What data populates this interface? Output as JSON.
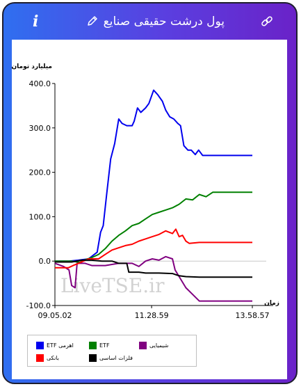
{
  "header": {
    "title": "پول درشت حقیقی صنایع",
    "info_label": "i",
    "info_icon": "info-icon",
    "edit_icon": "pencil-icon",
    "link_icon": "link-icon"
  },
  "colors": {
    "frame_start": "#2f6ff0",
    "frame_end": "#6a22c8",
    "etf_leveraged": "#0000ee",
    "etf": "#008000",
    "chemical": "#800080",
    "bank": "#ff0000",
    "basic_metals": "#000000"
  },
  "watermark": "LiveTSE.ir",
  "chart_data": {
    "type": "line",
    "ylabel": "میلیارد تومان",
    "xlabel": "زمان",
    "ylim": [
      -100,
      400
    ],
    "yticks": [
      "400.0",
      "300.0",
      "200.0",
      "100.0",
      "0.0",
      "-100.0"
    ],
    "ytick_values": [
      400,
      300,
      200,
      100,
      0,
      -100
    ],
    "x_time_range": [
      "09:05:02",
      "13:58:57"
    ],
    "xticks": [
      "09.05.02",
      "11.28.59",
      "13.58.57"
    ],
    "grid": "zero-line-only",
    "legend_placement": "bottom-left",
    "series": [
      {
        "name": "ETF اهرمی",
        "color": "#0000ee",
        "points": [
          [
            "09:05:02",
            0
          ],
          [
            "09:26:00",
            0
          ],
          [
            "09:40:00",
            2
          ],
          [
            "09:55:00",
            5
          ],
          [
            "10:08:00",
            20
          ],
          [
            "10:13:00",
            65
          ],
          [
            "10:17:00",
            80
          ],
          [
            "10:22:00",
            150
          ],
          [
            "10:28:00",
            230
          ],
          [
            "10:34:00",
            265
          ],
          [
            "10:40:00",
            320
          ],
          [
            "10:45:00",
            310
          ],
          [
            "10:52:00",
            305
          ],
          [
            "11:00:00",
            305
          ],
          [
            "11:03:00",
            315
          ],
          [
            "11:08:00",
            345
          ],
          [
            "11:13:00",
            335
          ],
          [
            "11:20:00",
            345
          ],
          [
            "11:25:00",
            355
          ],
          [
            "11:32:00",
            385
          ],
          [
            "11:38:00",
            375
          ],
          [
            "11:45:00",
            360
          ],
          [
            "11:50:00",
            340
          ],
          [
            "11:56:00",
            325
          ],
          [
            "12:02:00",
            320
          ],
          [
            "12:08:00",
            310
          ],
          [
            "12:12:00",
            305
          ],
          [
            "12:17:00",
            260
          ],
          [
            "12:23:00",
            250
          ],
          [
            "12:28:00",
            250
          ],
          [
            "12:34:00",
            240
          ],
          [
            "12:39:00",
            250
          ],
          [
            "12:45:00",
            238
          ],
          [
            "13:00:00",
            238
          ],
          [
            "13:58:57",
            238
          ]
        ]
      },
      {
        "name": "ETF",
        "color": "#008000",
        "points": [
          [
            "09:05:02",
            0
          ],
          [
            "09:30:00",
            0
          ],
          [
            "09:42:00",
            -3
          ],
          [
            "09:50:00",
            3
          ],
          [
            "10:00:00",
            8
          ],
          [
            "10:10:00",
            15
          ],
          [
            "10:20:00",
            28
          ],
          [
            "10:30:00",
            45
          ],
          [
            "10:40:00",
            58
          ],
          [
            "10:50:00",
            68
          ],
          [
            "11:00:00",
            80
          ],
          [
            "11:10:00",
            85
          ],
          [
            "11:20:00",
            95
          ],
          [
            "11:30:00",
            105
          ],
          [
            "11:40:00",
            110
          ],
          [
            "11:50:00",
            115
          ],
          [
            "12:00:00",
            120
          ],
          [
            "12:10:00",
            128
          ],
          [
            "12:20:00",
            140
          ],
          [
            "12:30:00",
            138
          ],
          [
            "12:40:00",
            150
          ],
          [
            "12:50:00",
            145
          ],
          [
            "13:00:00",
            155
          ],
          [
            "13:10:00",
            155
          ],
          [
            "13:58:57",
            155
          ]
        ]
      },
      {
        "name": "شیمیایی",
        "color": "#800080",
        "points": [
          [
            "09:05:02",
            -5
          ],
          [
            "09:18:00",
            -12
          ],
          [
            "09:26:00",
            -20
          ],
          [
            "09:30:00",
            -55
          ],
          [
            "09:35:00",
            -60
          ],
          [
            "09:38:00",
            -5
          ],
          [
            "09:50:00",
            -5
          ],
          [
            "10:00:00",
            -10
          ],
          [
            "10:20:00",
            -10
          ],
          [
            "10:40:00",
            -5
          ],
          [
            "11:00:00",
            -5
          ],
          [
            "11:10:00",
            -12
          ],
          [
            "11:20:00",
            0
          ],
          [
            "11:30:00",
            5
          ],
          [
            "11:40:00",
            2
          ],
          [
            "11:50:00",
            10
          ],
          [
            "12:00:00",
            5
          ],
          [
            "12:04:00",
            -20
          ],
          [
            "12:10:00",
            -35
          ],
          [
            "12:20:00",
            -60
          ],
          [
            "12:30:00",
            -75
          ],
          [
            "12:40:00",
            -90
          ],
          [
            "13:00:00",
            -90
          ],
          [
            "13:58:57",
            -90
          ]
        ]
      },
      {
        "name": "بانکی",
        "color": "#ff0000",
        "points": [
          [
            "09:05:02",
            -15
          ],
          [
            "09:25:00",
            -15
          ],
          [
            "09:32:00",
            -10
          ],
          [
            "09:40:00",
            -5
          ],
          [
            "09:55:00",
            5
          ],
          [
            "10:10:00",
            5
          ],
          [
            "10:20:00",
            15
          ],
          [
            "10:30:00",
            25
          ],
          [
            "10:40:00",
            30
          ],
          [
            "10:50:00",
            35
          ],
          [
            "11:00:00",
            38
          ],
          [
            "11:10:00",
            45
          ],
          [
            "11:20:00",
            50
          ],
          [
            "11:30:00",
            55
          ],
          [
            "11:40:00",
            60
          ],
          [
            "11:50:00",
            68
          ],
          [
            "12:00:00",
            62
          ],
          [
            "12:05:00",
            72
          ],
          [
            "12:10:00",
            55
          ],
          [
            "12:15:00",
            58
          ],
          [
            "12:20:00",
            45
          ],
          [
            "12:25:00",
            40
          ],
          [
            "12:40:00",
            42
          ],
          [
            "13:58:57",
            42
          ]
        ]
      },
      {
        "name": "فلزات اساسی",
        "color": "#000000",
        "points": [
          [
            "09:05:02",
            -2
          ],
          [
            "09:30:00",
            -2
          ],
          [
            "09:45:00",
            2
          ],
          [
            "10:00:00",
            2
          ],
          [
            "10:15:00",
            0
          ],
          [
            "10:30:00",
            0
          ],
          [
            "10:40:00",
            -5
          ],
          [
            "10:52:00",
            -5
          ],
          [
            "10:55:00",
            -25
          ],
          [
            "11:10:00",
            -25
          ],
          [
            "11:20:00",
            -27
          ],
          [
            "11:40:00",
            -27
          ],
          [
            "12:00:00",
            -28
          ],
          [
            "12:10:00",
            -33
          ],
          [
            "12:20:00",
            -35
          ],
          [
            "12:40:00",
            -36
          ],
          [
            "13:58:57",
            -36
          ]
        ]
      }
    ]
  }
}
